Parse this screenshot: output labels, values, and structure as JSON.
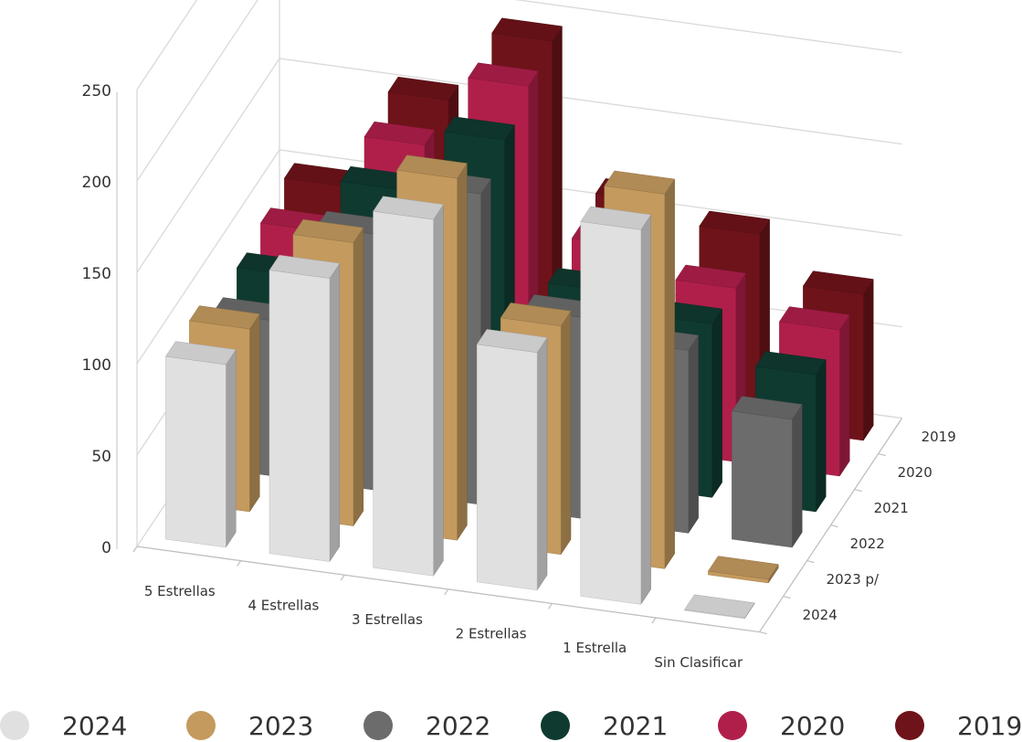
{
  "chart_data": {
    "type": "bar",
    "categories": [
      "5 Estrellas",
      "4 Estrellas",
      "3 Estrellas",
      "2 Estrellas",
      "1 Estrella",
      "Sin Clasificar"
    ],
    "depth_labels": [
      "2024",
      "2023 p/",
      "2022",
      "2021",
      "2020",
      "2019"
    ],
    "y_ticks": [
      "0",
      "50",
      "100",
      "150",
      "200",
      "250"
    ],
    "ylim": [
      0,
      250
    ],
    "series": [
      {
        "name": "2024",
        "color": "#e0e0e0",
        "values": [
          100,
          155,
          195,
          130,
          205,
          0
        ]
      },
      {
        "name": "2023",
        "color": "#c49a5e",
        "values": [
          100,
          155,
          198,
          125,
          205,
          2
        ]
      },
      {
        "name": "2022",
        "color": "#6c6c6c",
        "values": [
          85,
          140,
          170,
          110,
          100,
          70
        ]
      },
      {
        "name": "2021",
        "color": "#0f3a30",
        "values": [
          90,
          145,
          180,
          105,
          95,
          75
        ]
      },
      {
        "name": "2020",
        "color": "#b01f4a",
        "values": [
          95,
          150,
          190,
          110,
          95,
          80
        ]
      },
      {
        "name": "2019",
        "color": "#6e1319",
        "values": [
          100,
          155,
          195,
          115,
          105,
          80
        ]
      }
    ]
  },
  "legend": [
    {
      "label": "2024",
      "color": "#e0e0e0"
    },
    {
      "label": "2023",
      "color": "#c49a5e"
    },
    {
      "label": "2022",
      "color": "#6c6c6c"
    },
    {
      "label": "2021",
      "color": "#0f3a30"
    },
    {
      "label": "2020",
      "color": "#b01f4a"
    },
    {
      "label": "2019",
      "color": "#6e1319"
    }
  ]
}
